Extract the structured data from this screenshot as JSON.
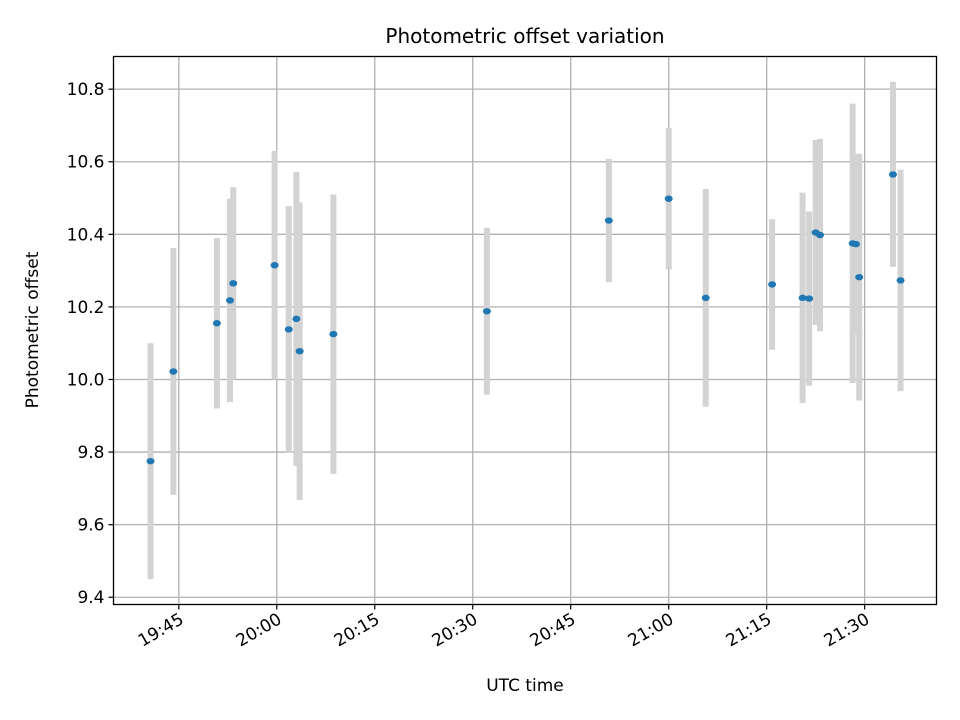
{
  "chart_data": {
    "type": "scatter",
    "title": "Photometric offset variation",
    "xlabel": "UTC time",
    "ylabel": "Photometric offset",
    "x_axis_type": "time",
    "xlim": [
      "19:35",
      "21:41"
    ],
    "ylim": [
      9.38,
      10.89
    ],
    "xticks": [
      "19:45",
      "20:00",
      "20:15",
      "20:30",
      "20:45",
      "21:00",
      "21:15",
      "21:30"
    ],
    "yticks": [
      9.4,
      9.6,
      9.8,
      10.0,
      10.2,
      10.4,
      10.6,
      10.8
    ],
    "ytick_labels": [
      "9.4",
      "9.6",
      "9.8",
      "10.0",
      "10.2",
      "10.4",
      "10.6",
      "10.8"
    ],
    "grid": true,
    "colors": {
      "point": "#1f77b4",
      "errorbar": "#d3d3d3",
      "grid": "#b0b0b0"
    },
    "series": [
      {
        "points": [
          {
            "t": "19:40:40",
            "y": 9.775,
            "yerr": 0.325
          },
          {
            "t": "19:44:10",
            "y": 10.022,
            "yerr": 0.34
          },
          {
            "t": "19:50:50",
            "y": 10.155,
            "yerr": 0.235
          },
          {
            "t": "19:52:50",
            "y": 10.218,
            "yerr": 0.28
          },
          {
            "t": "19:53:20",
            "y": 10.265,
            "yerr": 0.265
          },
          {
            "t": "19:59:40",
            "y": 10.315,
            "yerr": 0.315
          },
          {
            "t": "20:01:50",
            "y": 10.138,
            "yerr": 0.34
          },
          {
            "t": "20:03:00",
            "y": 10.167,
            "yerr": 0.405
          },
          {
            "t": "20:03:30",
            "y": 10.078,
            "yerr": 0.41
          },
          {
            "t": "20:08:40",
            "y": 10.125,
            "yerr": 0.385
          },
          {
            "t": "20:32:10",
            "y": 10.188,
            "yerr": 0.23
          },
          {
            "t": "20:50:50",
            "y": 10.438,
            "yerr": 0.17
          },
          {
            "t": "21:00:00",
            "y": 10.498,
            "yerr": 0.195
          },
          {
            "t": "21:05:40",
            "y": 10.225,
            "yerr": 0.3
          },
          {
            "t": "21:15:50",
            "y": 10.262,
            "yerr": 0.18
          },
          {
            "t": "21:20:30",
            "y": 10.225,
            "yerr": 0.29
          },
          {
            "t": "21:21:30",
            "y": 10.223,
            "yerr": 0.24
          },
          {
            "t": "21:22:30",
            "y": 10.405,
            "yerr": 0.255
          },
          {
            "t": "21:23:10",
            "y": 10.398,
            "yerr": 0.265
          },
          {
            "t": "21:28:10",
            "y": 10.375,
            "yerr": 0.385
          },
          {
            "t": "21:28:40",
            "y": 10.373,
            "yerr": 0.245
          },
          {
            "t": "21:29:10",
            "y": 10.282,
            "yerr": 0.34
          },
          {
            "t": "21:34:20",
            "y": 10.565,
            "yerr": 0.255
          },
          {
            "t": "21:35:30",
            "y": 10.273,
            "yerr": 0.305
          }
        ]
      }
    ]
  }
}
